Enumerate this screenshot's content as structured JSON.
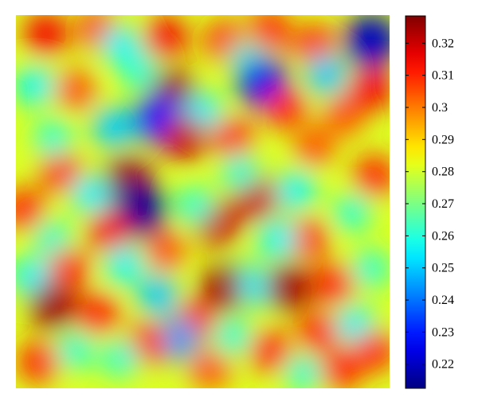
{
  "chart_data": {
    "type": "heatmap",
    "title": "",
    "xlabel": "",
    "ylabel": "",
    "colormap": "jet",
    "color_range": [
      0.2125,
      0.3285
    ],
    "colorbar": {
      "ticks": [
        0.22,
        0.23,
        0.24,
        0.25,
        0.26,
        0.27,
        0.28,
        0.29,
        0.3,
        0.31,
        0.32
      ],
      "tick_labels": [
        "0.22",
        "0.23",
        "0.24",
        "0.25",
        "0.26",
        "0.27",
        "0.28",
        "0.29",
        "0.3",
        "0.31",
        "0.32"
      ]
    },
    "spots": [
      {
        "x": 0.08,
        "y": 0.05,
        "v": 0.315
      },
      {
        "x": 0.22,
        "y": 0.04,
        "v": 0.31
      },
      {
        "x": 0.4,
        "y": 0.06,
        "v": 0.315
      },
      {
        "x": 0.56,
        "y": 0.07,
        "v": 0.31
      },
      {
        "x": 0.68,
        "y": 0.04,
        "v": 0.31
      },
      {
        "x": 0.8,
        "y": 0.08,
        "v": 0.31
      },
      {
        "x": 0.95,
        "y": 0.07,
        "v": 0.22
      },
      {
        "x": 0.62,
        "y": 0.12,
        "v": 0.26
      },
      {
        "x": 0.83,
        "y": 0.16,
        "v": 0.25
      },
      {
        "x": 0.66,
        "y": 0.18,
        "v": 0.225
      },
      {
        "x": 0.42,
        "y": 0.21,
        "v": 0.325
      },
      {
        "x": 0.38,
        "y": 0.28,
        "v": 0.23
      },
      {
        "x": 0.5,
        "y": 0.26,
        "v": 0.255
      },
      {
        "x": 0.45,
        "y": 0.33,
        "v": 0.32
      },
      {
        "x": 0.16,
        "y": 0.2,
        "v": 0.305
      },
      {
        "x": 0.05,
        "y": 0.19,
        "v": 0.255
      },
      {
        "x": 0.26,
        "y": 0.3,
        "v": 0.25
      },
      {
        "x": 0.72,
        "y": 0.25,
        "v": 0.31
      },
      {
        "x": 0.88,
        "y": 0.27,
        "v": 0.305
      },
      {
        "x": 0.95,
        "y": 0.2,
        "v": 0.315
      },
      {
        "x": 0.58,
        "y": 0.33,
        "v": 0.31
      },
      {
        "x": 0.8,
        "y": 0.35,
        "v": 0.305
      },
      {
        "x": 0.12,
        "y": 0.42,
        "v": 0.31
      },
      {
        "x": 0.3,
        "y": 0.44,
        "v": 0.325
      },
      {
        "x": 0.33,
        "y": 0.52,
        "v": 0.215
      },
      {
        "x": 0.25,
        "y": 0.58,
        "v": 0.315
      },
      {
        "x": 0.02,
        "y": 0.52,
        "v": 0.31
      },
      {
        "x": 0.2,
        "y": 0.48,
        "v": 0.255
      },
      {
        "x": 0.54,
        "y": 0.56,
        "v": 0.32
      },
      {
        "x": 0.48,
        "y": 0.51,
        "v": 0.26
      },
      {
        "x": 0.64,
        "y": 0.49,
        "v": 0.32
      },
      {
        "x": 0.6,
        "y": 0.42,
        "v": 0.26
      },
      {
        "x": 0.75,
        "y": 0.47,
        "v": 0.255
      },
      {
        "x": 0.78,
        "y": 0.6,
        "v": 0.31
      },
      {
        "x": 0.9,
        "y": 0.53,
        "v": 0.26
      },
      {
        "x": 0.96,
        "y": 0.43,
        "v": 0.31
      },
      {
        "x": 0.1,
        "y": 0.6,
        "v": 0.26
      },
      {
        "x": 0.14,
        "y": 0.68,
        "v": 0.31
      },
      {
        "x": 0.29,
        "y": 0.67,
        "v": 0.255
      },
      {
        "x": 0.4,
        "y": 0.63,
        "v": 0.305
      },
      {
        "x": 0.6,
        "y": 0.7,
        "v": 0.265
      },
      {
        "x": 0.56,
        "y": 0.73,
        "v": 0.325
      },
      {
        "x": 0.65,
        "y": 0.73,
        "v": 0.255
      },
      {
        "x": 0.73,
        "y": 0.73,
        "v": 0.325
      },
      {
        "x": 0.85,
        "y": 0.72,
        "v": 0.31
      },
      {
        "x": 0.95,
        "y": 0.68,
        "v": 0.26
      },
      {
        "x": 0.04,
        "y": 0.7,
        "v": 0.255
      },
      {
        "x": 0.1,
        "y": 0.78,
        "v": 0.325
      },
      {
        "x": 0.22,
        "y": 0.8,
        "v": 0.31
      },
      {
        "x": 0.38,
        "y": 0.75,
        "v": 0.25
      },
      {
        "x": 0.48,
        "y": 0.82,
        "v": 0.31
      },
      {
        "x": 0.43,
        "y": 0.87,
        "v": 0.245
      },
      {
        "x": 0.35,
        "y": 0.88,
        "v": 0.31
      },
      {
        "x": 0.28,
        "y": 0.92,
        "v": 0.26
      },
      {
        "x": 0.58,
        "y": 0.86,
        "v": 0.26
      },
      {
        "x": 0.68,
        "y": 0.9,
        "v": 0.31
      },
      {
        "x": 0.81,
        "y": 0.85,
        "v": 0.31
      },
      {
        "x": 0.91,
        "y": 0.83,
        "v": 0.255
      },
      {
        "x": 0.96,
        "y": 0.9,
        "v": 0.31
      },
      {
        "x": 0.06,
        "y": 0.93,
        "v": 0.31
      },
      {
        "x": 0.16,
        "y": 0.9,
        "v": 0.26
      },
      {
        "x": 0.52,
        "y": 0.95,
        "v": 0.305
      },
      {
        "x": 0.77,
        "y": 0.96,
        "v": 0.26
      },
      {
        "x": 0.87,
        "y": 0.95,
        "v": 0.31
      },
      {
        "x": 0.33,
        "y": 0.15,
        "v": 0.26
      },
      {
        "x": 0.28,
        "y": 0.08,
        "v": 0.255
      },
      {
        "x": 0.1,
        "y": 0.33,
        "v": 0.26
      },
      {
        "x": 0.7,
        "y": 0.6,
        "v": 0.255
      }
    ]
  }
}
